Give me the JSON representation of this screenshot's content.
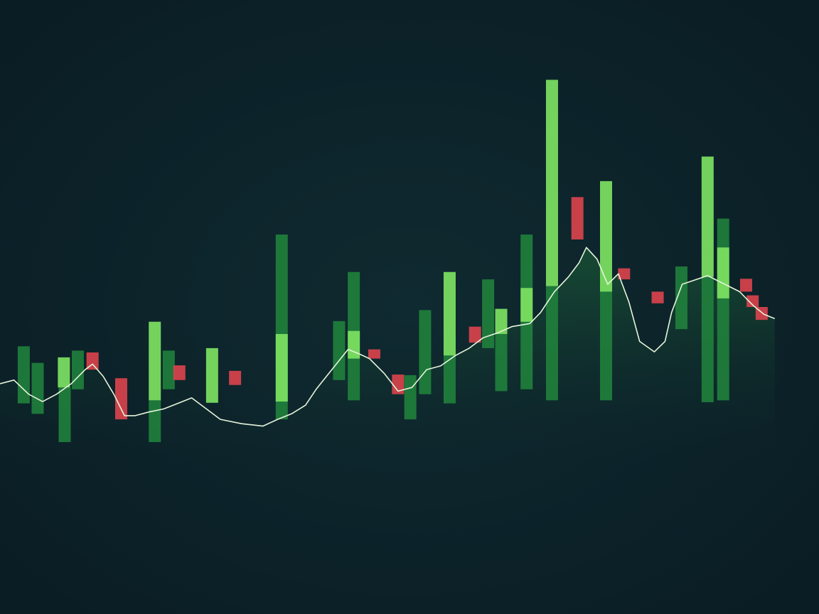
{
  "chart_data": {
    "type": "combo",
    "xlim": [
      0,
      100
    ],
    "ylim": [
      0,
      100
    ],
    "series": [
      {
        "type": "range-bar",
        "color": "#1f7f3c",
        "x": [
          2.9,
          4.6,
          7.9,
          9.5,
          18.9,
          20.6,
          34.4,
          41.4,
          43.2,
          50.1,
          51.9,
          54.9,
          59.6,
          61.2,
          64.3,
          67.4,
          74.0,
          83.2,
          86.4,
          88.3
        ],
        "low": [
          34.3,
          32.6,
          28.0,
          36.6,
          28.0,
          36.6,
          31.7,
          38.1,
          34.8,
          31.7,
          35.8,
          34.3,
          43.3,
          36.3,
          36.6,
          34.8,
          34.8,
          46.4,
          34.5,
          34.8
        ],
        "high": [
          43.6,
          40.9,
          36.9,
          42.9,
          34.8,
          42.9,
          61.8,
          47.7,
          55.7,
          38.9,
          49.5,
          42.1,
          54.5,
          45.6,
          61.8,
          53.4,
          52.5,
          56.6,
          54.9,
          64.4
        ]
      },
      {
        "type": "range-bar",
        "color": "#7de262",
        "x": [
          7.8,
          18.9,
          25.9,
          34.4,
          43.2,
          54.9,
          61.2,
          64.3,
          67.4,
          74.0,
          86.4,
          88.3
        ],
        "low": [
          36.9,
          34.8,
          34.4,
          34.6,
          41.6,
          42.1,
          45.6,
          47.6,
          53.4,
          52.5,
          54.9,
          51.4
        ],
        "high": [
          41.8,
          47.6,
          43.3,
          45.6,
          46.1,
          55.7,
          49.7,
          53.1,
          87.0,
          70.5,
          74.5,
          59.7
        ]
      },
      {
        "type": "range-bar",
        "color": "#d8434c",
        "x": [
          11.3,
          14.8,
          21.9,
          28.7,
          45.7,
          48.6,
          58.0,
          70.5,
          76.2,
          80.3,
          91.1,
          91.9,
          93.0
        ],
        "low": [
          39.8,
          31.7,
          38.1,
          37.3,
          41.6,
          35.8,
          44.2,
          61.0,
          54.5,
          50.6,
          52.5,
          50.0,
          47.9
        ],
        "high": [
          42.6,
          38.4,
          40.5,
          39.6,
          43.1,
          39.0,
          46.8,
          67.9,
          56.3,
          52.5,
          54.6,
          51.9,
          50.0
        ]
      },
      {
        "type": "line",
        "color": "#e6f4dc",
        "area": true,
        "x": [
          0,
          1.7,
          3.5,
          5.2,
          6.9,
          8.7,
          10.4,
          11.3,
          12.6,
          13.9,
          15.2,
          16.5,
          18.2,
          20.0,
          22.1,
          23.4,
          25.2,
          26.9,
          29.5,
          32.1,
          33.9,
          35.6,
          37.3,
          38.6,
          40.4,
          42.5,
          43.8,
          45.1,
          46.9,
          48.6,
          50.3,
          52.1,
          53.8,
          55.6,
          57.3,
          59.0,
          60.8,
          62.5,
          64.7,
          66.0,
          67.7,
          69.4,
          70.7,
          71.6,
          72.9,
          74.2,
          75.5,
          76.8,
          78.1,
          79.9,
          81.2,
          82.0,
          83.3,
          86.4,
          88.5,
          90.3,
          92.0,
          93.3,
          94.6
        ],
        "values": [
          37.5,
          38.1,
          35.8,
          34.6,
          35.8,
          37.5,
          39.8,
          40.7,
          38.7,
          35.8,
          32.3,
          32.3,
          32.9,
          33.4,
          34.5,
          35.2,
          33.4,
          31.7,
          31.0,
          30.6,
          31.7,
          32.6,
          34.0,
          36.6,
          39.6,
          43.1,
          42.4,
          41.6,
          39.2,
          36.3,
          36.9,
          39.8,
          40.4,
          42.1,
          43.3,
          45.0,
          45.8,
          46.8,
          47.3,
          49.1,
          52.5,
          54.9,
          57.2,
          59.7,
          57.8,
          53.7,
          55.4,
          50.8,
          44.4,
          42.7,
          44.4,
          49.1,
          53.7,
          55.1,
          53.7,
          52.5,
          50.2,
          48.8,
          48.1
        ]
      }
    ]
  }
}
